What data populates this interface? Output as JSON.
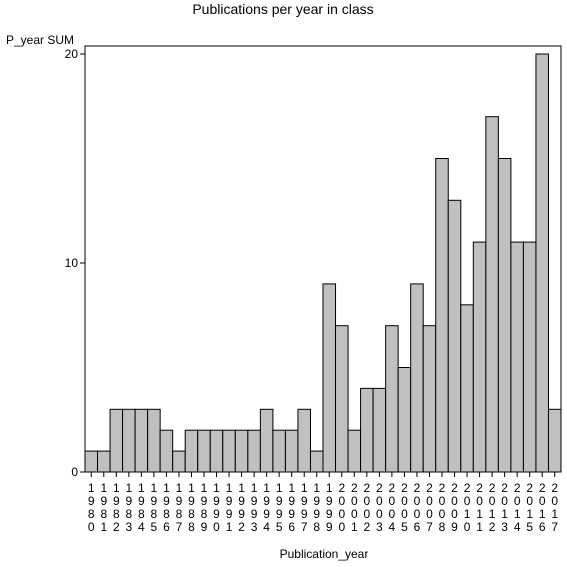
{
  "chart_data": {
    "type": "bar",
    "title": "Publications per year in class",
    "ylabel": "P_year SUM",
    "xlabel": "Publication_year",
    "ylim": [
      0,
      20
    ],
    "yticks": [
      0,
      10,
      20
    ],
    "grid": false,
    "colors": {
      "bar_fill": "#c0c0c0",
      "bar_stroke": "#000000",
      "axis": "#000000",
      "background": "#ffffff"
    },
    "categories": [
      "1980",
      "1981",
      "1982",
      "1983",
      "1984",
      "1985",
      "1986",
      "1987",
      "1988",
      "1989",
      "1990",
      "1991",
      "1992",
      "1993",
      "1994",
      "1995",
      "1996",
      "1997",
      "1998",
      "1999",
      "2000",
      "2001",
      "2002",
      "2003",
      "2004",
      "2005",
      "2006",
      "2007",
      "2008",
      "2009",
      "2010",
      "2011",
      "2012",
      "2013",
      "2014",
      "2015",
      "2016",
      "2017"
    ],
    "values": [
      1,
      1,
      3,
      3,
      3,
      3,
      2,
      1,
      2,
      2,
      2,
      2,
      2,
      2,
      3,
      2,
      2,
      3,
      1,
      9,
      7,
      2,
      4,
      4,
      7,
      5,
      9,
      7,
      15,
      13,
      8,
      11,
      17,
      15,
      11,
      11,
      20,
      3
    ]
  }
}
